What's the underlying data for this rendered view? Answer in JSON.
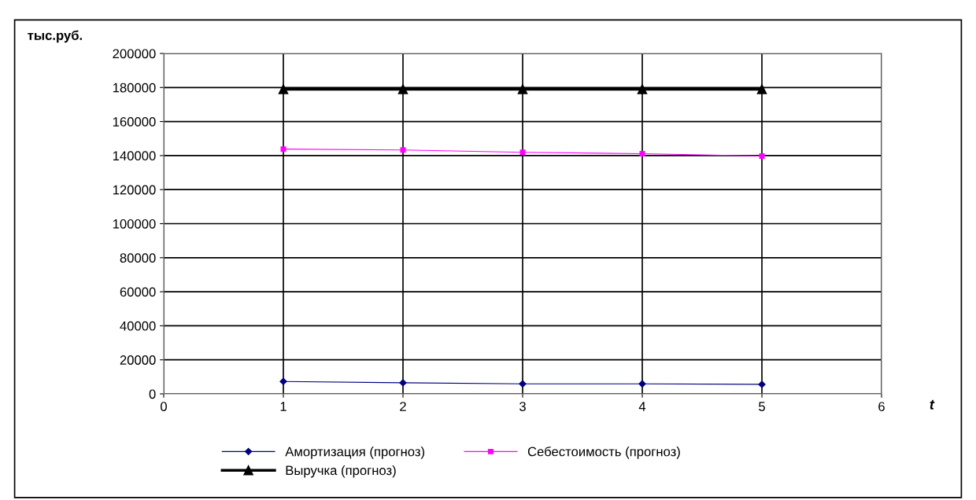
{
  "chart_data": {
    "type": "line",
    "ylabel": "тыс.руб.",
    "xlabel": "t",
    "x": [
      1,
      2,
      3,
      4,
      5
    ],
    "series": [
      {
        "name": "Амортизация (прогноз)",
        "color": "#000080",
        "marker": "diamond",
        "values": [
          7300,
          6500,
          5900,
          5900,
          5600
        ]
      },
      {
        "name": "Себестоимость (прогноз)",
        "color": "#ff00ff",
        "marker": "square",
        "values": [
          143800,
          143300,
          141900,
          141100,
          139700
        ]
      },
      {
        "name": "Выручка (прогноз)",
        "color": "#000000",
        "marker": "triangle",
        "values": [
          179000,
          179000,
          179000,
          179000,
          179000
        ]
      }
    ],
    "xlim": [
      0,
      6
    ],
    "xticks": [
      0,
      1,
      2,
      3,
      4,
      5,
      6
    ],
    "ylim": [
      0,
      200000
    ],
    "yticks": [
      0,
      20000,
      40000,
      60000,
      80000,
      100000,
      120000,
      140000,
      160000,
      180000,
      200000
    ],
    "grid": true,
    "legend": "bottom",
    "line_style": "solid"
  }
}
